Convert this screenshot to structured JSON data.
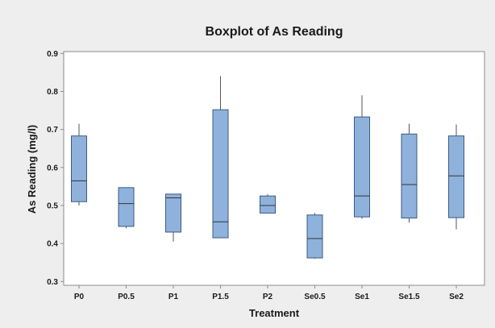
{
  "chart_data": {
    "type": "boxplot",
    "title": "Boxplot of As Reading",
    "xlabel": "Treatment",
    "ylabel": "As Reading (mg/l)",
    "ylim": [
      0.29,
      0.905
    ],
    "yticks": [
      0.3,
      0.4,
      0.5,
      0.6,
      0.7,
      0.8,
      0.9
    ],
    "ytick_labels": [
      "0.3",
      "0.4",
      "0.5",
      "0.6",
      "0.7",
      "0.8",
      "0.9"
    ],
    "grid": false,
    "legend": "none",
    "colors": {
      "background": "#eeeeee",
      "plot_area": "#ffffff",
      "box_fill": "#8fb2dc",
      "box_stroke": "#3c5a82",
      "whisker": "#555555",
      "median": "#333333",
      "axis": "#8c8c8c",
      "text": "#1a1a1a"
    },
    "categories": [
      "P0",
      "P0.5",
      "P1",
      "P1.5",
      "P2",
      "Se0.5",
      "Se1",
      "Se1.5",
      "Se2"
    ],
    "boxes": [
      {
        "category": "P0",
        "min": 0.5,
        "q1": 0.51,
        "median": 0.565,
        "q3": 0.683,
        "max": 0.715
      },
      {
        "category": "P0.5",
        "min": 0.44,
        "q1": 0.445,
        "median": 0.505,
        "q3": 0.547,
        "max": 0.547
      },
      {
        "category": "P1",
        "min": 0.405,
        "q1": 0.43,
        "median": 0.52,
        "q3": 0.53,
        "max": 0.53
      },
      {
        "category": "P1.5",
        "min": 0.415,
        "q1": 0.415,
        "median": 0.457,
        "q3": 0.752,
        "max": 0.84
      },
      {
        "category": "P2",
        "min": 0.48,
        "q1": 0.48,
        "median": 0.5,
        "q3": 0.525,
        "max": 0.53
      },
      {
        "category": "Se0.5",
        "min": 0.36,
        "q1": 0.362,
        "median": 0.413,
        "q3": 0.475,
        "max": 0.48
      },
      {
        "category": "Se1",
        "min": 0.465,
        "q1": 0.47,
        "median": 0.525,
        "q3": 0.733,
        "max": 0.79
      },
      {
        "category": "Se1.5",
        "min": 0.455,
        "q1": 0.467,
        "median": 0.555,
        "q3": 0.688,
        "max": 0.715
      },
      {
        "category": "Se2",
        "min": 0.437,
        "q1": 0.468,
        "median": 0.578,
        "q3": 0.683,
        "max": 0.713
      }
    ]
  }
}
